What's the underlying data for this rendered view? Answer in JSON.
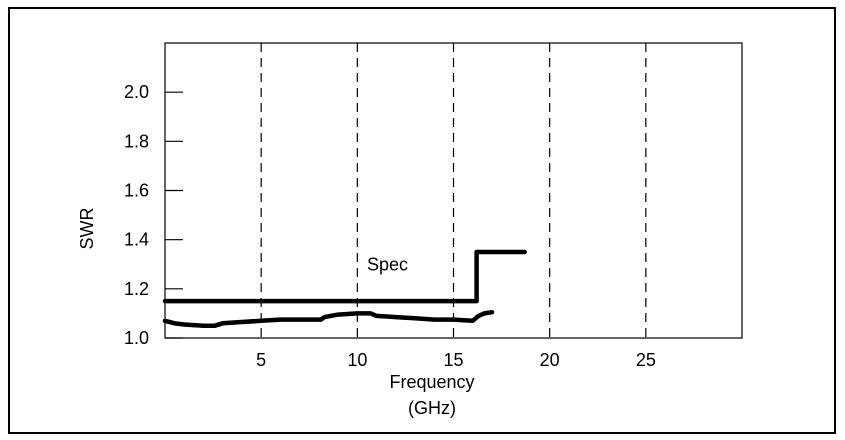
{
  "chart_data": {
    "type": "line",
    "xlabel": "Frequency",
    "xlabel_unit": "(GHz)",
    "ylabel": "SWR",
    "xlim": [
      0,
      30
    ],
    "ylim": [
      1.0,
      2.2
    ],
    "x_ticks": [
      5,
      10,
      15,
      20,
      25
    ],
    "y_ticks": [
      1.0,
      1.2,
      1.4,
      1.6,
      1.8,
      2.0
    ],
    "y_tick_labels": [
      "1.0",
      "1.2",
      "1.4",
      "1.6",
      "1.8",
      "2.0"
    ],
    "x_tick_labels": [
      "5",
      "10",
      "15",
      "20",
      "25"
    ],
    "grid": "vertical dashed at x ticks",
    "annotations": [
      {
        "text": "Spec",
        "x": 10.5,
        "y": 1.3
      }
    ],
    "series": [
      {
        "name": "Spec",
        "color": "#000000",
        "x": [
          0,
          16.2,
          16.2,
          18.7
        ],
        "y": [
          1.15,
          1.15,
          1.35,
          1.35
        ]
      },
      {
        "color": "#000000",
        "x": [
          0,
          0.5,
          1,
          2,
          2.6,
          3,
          4,
          5,
          6,
          7,
          8.1,
          8.3,
          9,
          10,
          10.7,
          11,
          12,
          13,
          14,
          15,
          16,
          16.3,
          16.6,
          17
        ],
        "y": [
          1.07,
          1.06,
          1.055,
          1.05,
          1.05,
          1.06,
          1.065,
          1.07,
          1.075,
          1.075,
          1.075,
          1.085,
          1.095,
          1.1,
          1.1,
          1.09,
          1.085,
          1.08,
          1.075,
          1.075,
          1.07,
          1.09,
          1.1,
          1.105
        ]
      }
    ]
  }
}
